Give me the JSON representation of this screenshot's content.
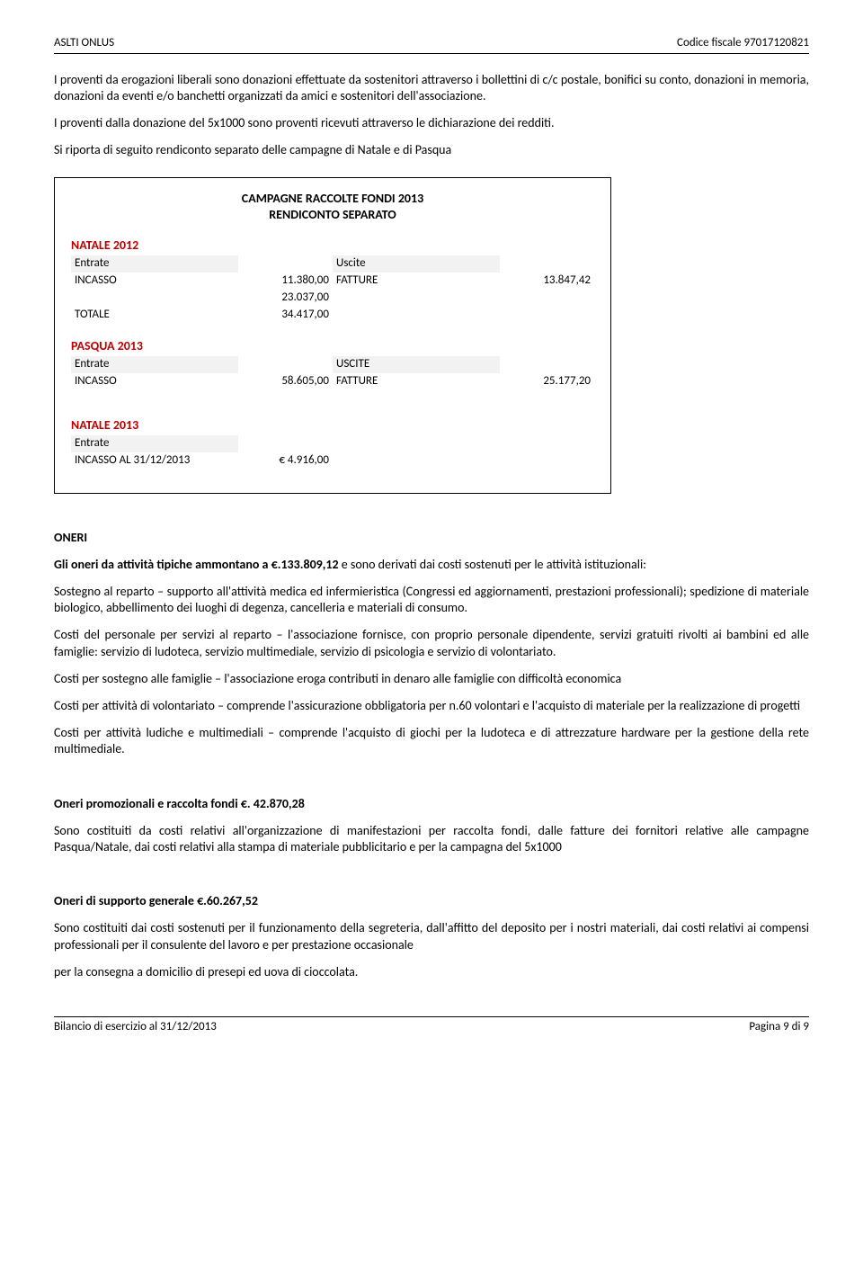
{
  "header": {
    "left": "ASLTI ONLUS",
    "right": "Codice fiscale 97017120821"
  },
  "intro": {
    "p1": "I proventi da erogazioni liberali sono donazioni effettuate da sostenitori attraverso i bollettini di c/c postale, bonifici su conto, donazioni in memoria, donazioni da eventi e/o banchetti organizzati da amici e sostenitori dell'associazione.",
    "p2": "I proventi dalla donazione del 5x1000 sono proventi ricevuti attraverso le dichiarazione dei redditi.",
    "p3": "Si riporta di seguito rendiconto separato delle campagne di Natale e di Pasqua"
  },
  "campaign": {
    "title1": "CAMPAGNE RACCOLTE FONDI 2013",
    "title2": "RENDICONTO SEPARATO",
    "natale2012": {
      "label": "NATALE 2012",
      "entrate": "Entrate",
      "uscite": "Uscite",
      "row_label": "INCASSO",
      "row_v1": "11.380,00",
      "fatture": "FATTURE",
      "row_v2": "13.847,42",
      "extra1": "23.037,00",
      "totale_label": "TOTALE",
      "totale_v": "34.417,00"
    },
    "pasqua2013": {
      "label": "PASQUA 2013",
      "entrate": "Entrate",
      "uscite": "USCITE",
      "row_label": "INCASSO",
      "row_v1": "58.605,00",
      "fatture": "FATTURE",
      "row_v2": "25.177,20"
    },
    "natale2013": {
      "label": "NATALE 2013",
      "entrate": "Entrate",
      "row_label": "INCASSO AL 31/12/2013",
      "row_v": "€ 4.916,00"
    }
  },
  "oneri": {
    "heading": "ONERI",
    "p1_bold": "Gli oneri da attività tipiche ammontano a €.133.809,12",
    "p1_rest": " e sono derivati dai costi sostenuti per le attività istituzionali:",
    "p2": "Sostegno al reparto – supporto all'attività medica ed infermieristica (Congressi ed aggiornamenti, prestazioni professionali); spedizione di materiale biologico, abbellimento dei luoghi di degenza, cancelleria e materiali di consumo.",
    "p3": "Costi del personale per servizi al reparto – l'associazione fornisce, con proprio personale dipendente, servizi gratuiti rivolti ai bambini ed alle famiglie: servizio di ludoteca, servizio multimediale, servizio di psicologia e servizio di volontariato.",
    "p4": "Costi per sostegno alle famiglie – l'associazione eroga contributi in denaro alle famiglie con difficoltà economica",
    "p5": "Costi per attività di volontariato – comprende l'assicurazione obbligatoria per n.60 volontari e l'acquisto di materiale per la realizzazione di progetti",
    "p6": "Costi per attività ludiche e multimediali – comprende l'acquisto di giochi per la ludoteca e di attrezzature hardware per la gestione della rete multimediale.",
    "promo_label": "Oneri promozionali e raccolta fondi  €. 42.870,28",
    "promo_body": "Sono costituiti da costi relativi all'organizzazione di manifestazioni per raccolta fondi, dalle fatture dei fornitori relative alle campagne Pasqua/Natale, dai costi relativi alla stampa di materiale pubblicitario e per la campagna del 5x1000",
    "supp_label": "Oneri di supporto generale €.60.267,52",
    "supp_body": "Sono costituiti dai costi sostenuti per il funzionamento della segreteria, dall'affitto del deposito per i nostri materiali, dai costi relativi ai compensi professionali per il consulente del lavoro e per prestazione occasionale",
    "supp_body2": "per la consegna a domicilio di presepi ed uova di cioccolata."
  },
  "footer": {
    "left": "Bilancio di esercizio al 31/12/2013",
    "right": "Pagina 9 di 9"
  }
}
